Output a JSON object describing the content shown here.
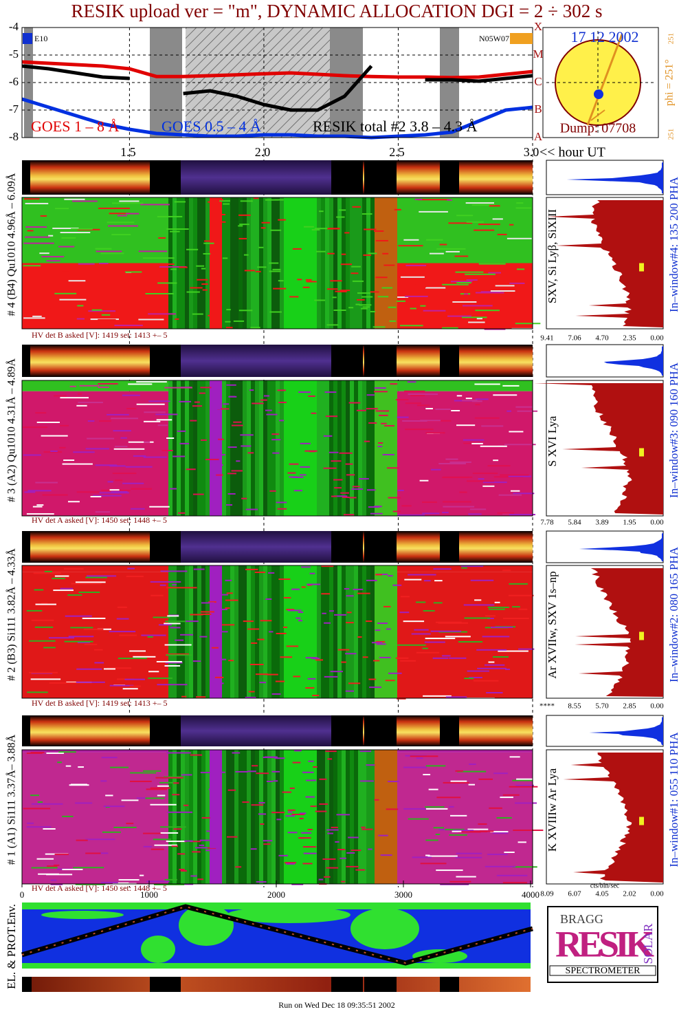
{
  "chart_data": {
    "type": "line",
    "title": "RESIK upload ver = \"m\", DYNAMIC ALLOCATION  DGI =   2 ÷ 302 s",
    "x_label": "<< hour UT",
    "x": [
      1.1,
      1.2,
      1.3,
      1.4,
      1.5,
      1.6,
      1.7,
      1.8,
      1.9,
      2.0,
      2.1,
      2.2,
      2.3,
      2.4,
      2.5,
      2.6,
      2.7,
      2.8,
      2.9,
      3.0
    ],
    "xlim": [
      1.1,
      3.0
    ],
    "xticks": [
      1.5,
      {
        "value": 2,
        "label": "2.0"
      },
      2.5,
      {
        "value": 3,
        "label": "3.0"
      }
    ],
    "ylim": [
      -8,
      -4
    ],
    "yticks": [
      -4,
      -5,
      -6,
      -7,
      -8
    ],
    "y2lim": [
      -8,
      -4
    ],
    "y2ticks": [
      {
        "value": -4,
        "label": "X"
      },
      {
        "value": -5,
        "label": "M"
      },
      {
        "value": -6,
        "label": "C"
      },
      {
        "value": -7,
        "label": "B"
      },
      {
        "value": -8,
        "label": "A"
      }
    ],
    "grid": true,
    "series": [
      {
        "name": "GOES 1 – 8 Å",
        "color": "#e00000",
        "values": [
          -5.25,
          -5.3,
          -5.35,
          -5.4,
          -5.5,
          -5.78,
          -5.78,
          -5.75,
          -5.72,
          -5.68,
          -5.65,
          -5.7,
          -5.75,
          -5.78,
          -5.8,
          -5.8,
          -5.82,
          -5.8,
          -5.7,
          -5.6
        ]
      },
      {
        "name": "GOES 0.5 – 4 Å",
        "color": "#0030e0",
        "values": [
          -6.6,
          -6.9,
          -7.2,
          -7.5,
          -7.7,
          -7.85,
          -7.9,
          -7.95,
          -7.95,
          -7.9,
          -7.9,
          -7.95,
          -7.95,
          -8.0,
          -7.95,
          -7.9,
          -7.8,
          -7.4,
          -7.0,
          -6.9
        ]
      },
      {
        "name": "RESIK total #2  3.8 – 4.3 Å",
        "color": "#000000",
        "values": [
          -5.4,
          -5.5,
          -5.65,
          -5.8,
          -5.85,
          null,
          -6.4,
          -6.3,
          -6.5,
          -6.8,
          -7.0,
          -7.0,
          -6.5,
          -5.4,
          null,
          -5.9,
          -5.9,
          -5.95,
          -5.85,
          -5.75
        ]
      }
    ],
    "annotations": [
      "E10",
      "N05W07"
    ]
  },
  "sun": {
    "date": "17 12 2002",
    "phi": "phi = 251°",
    "phi_small": "251",
    "dump": "Dump: 07708"
  },
  "channels": [
    {
      "label": "# 4 (B4) Qu1010 4.96Å – 6.09Å",
      "lines": "SXV, Si Lyβ, SiXIII",
      "window": "In–window#4:  135 200 PHA",
      "hv": "HV det B asked [V]:  1419 set:  1413 +–    5",
      "scale": [
        "9.41",
        "7.06",
        "4.70",
        "2.35",
        "0.00"
      ]
    },
    {
      "label": "# 3 (A2) Qu1010  4.31Å – 4.89Å",
      "lines": "S XVI Lya",
      "window": "In–window#3:  090 160 PHA",
      "hv": "HV det A asked [V]:  1450 set:  1448 +–    5",
      "scale": [
        "7.78",
        "5.84",
        "3.89",
        "1.95",
        "0.00"
      ]
    },
    {
      "label": "# 2 (B3) Si111  3.82Å – 4.33Å",
      "lines": "Ar XVIIw, SXV 1s–np",
      "window": "In–window#2:  080 165 PHA",
      "hv": "HV det B asked [V]:  1419 set:  1413 +–    5",
      "scale": [
        "****",
        "8.55",
        "5.70",
        "2.85",
        "0.00"
      ]
    },
    {
      "label": "# 1 (A1) Si111  3.37Å– 3.88Å",
      "lines": "K XVIIIw  Ar Lya",
      "window": "In–window#1:  055 110 PHA",
      "hv": "HV det A asked [V]:  1450 set:  1448 +–    5",
      "scale": [
        "8.09",
        "6.07",
        "4.05",
        "2.02",
        "0.00"
      ]
    }
  ],
  "spectra_axis": {
    "xlim": [
      0,
      4000
    ],
    "xticks": [
      0,
      1000,
      2000,
      3000,
      4000
    ]
  },
  "hist_unit": "cts/bin/sec",
  "environment_label": "EL. & PROT.Env.",
  "logo": {
    "top": "BRAGG",
    "name": "RESIK",
    "side": "SOLAR",
    "subtitle": "SPECTROMETER"
  },
  "footer": "Run on Wed Dec 18 09:35:51 2002"
}
